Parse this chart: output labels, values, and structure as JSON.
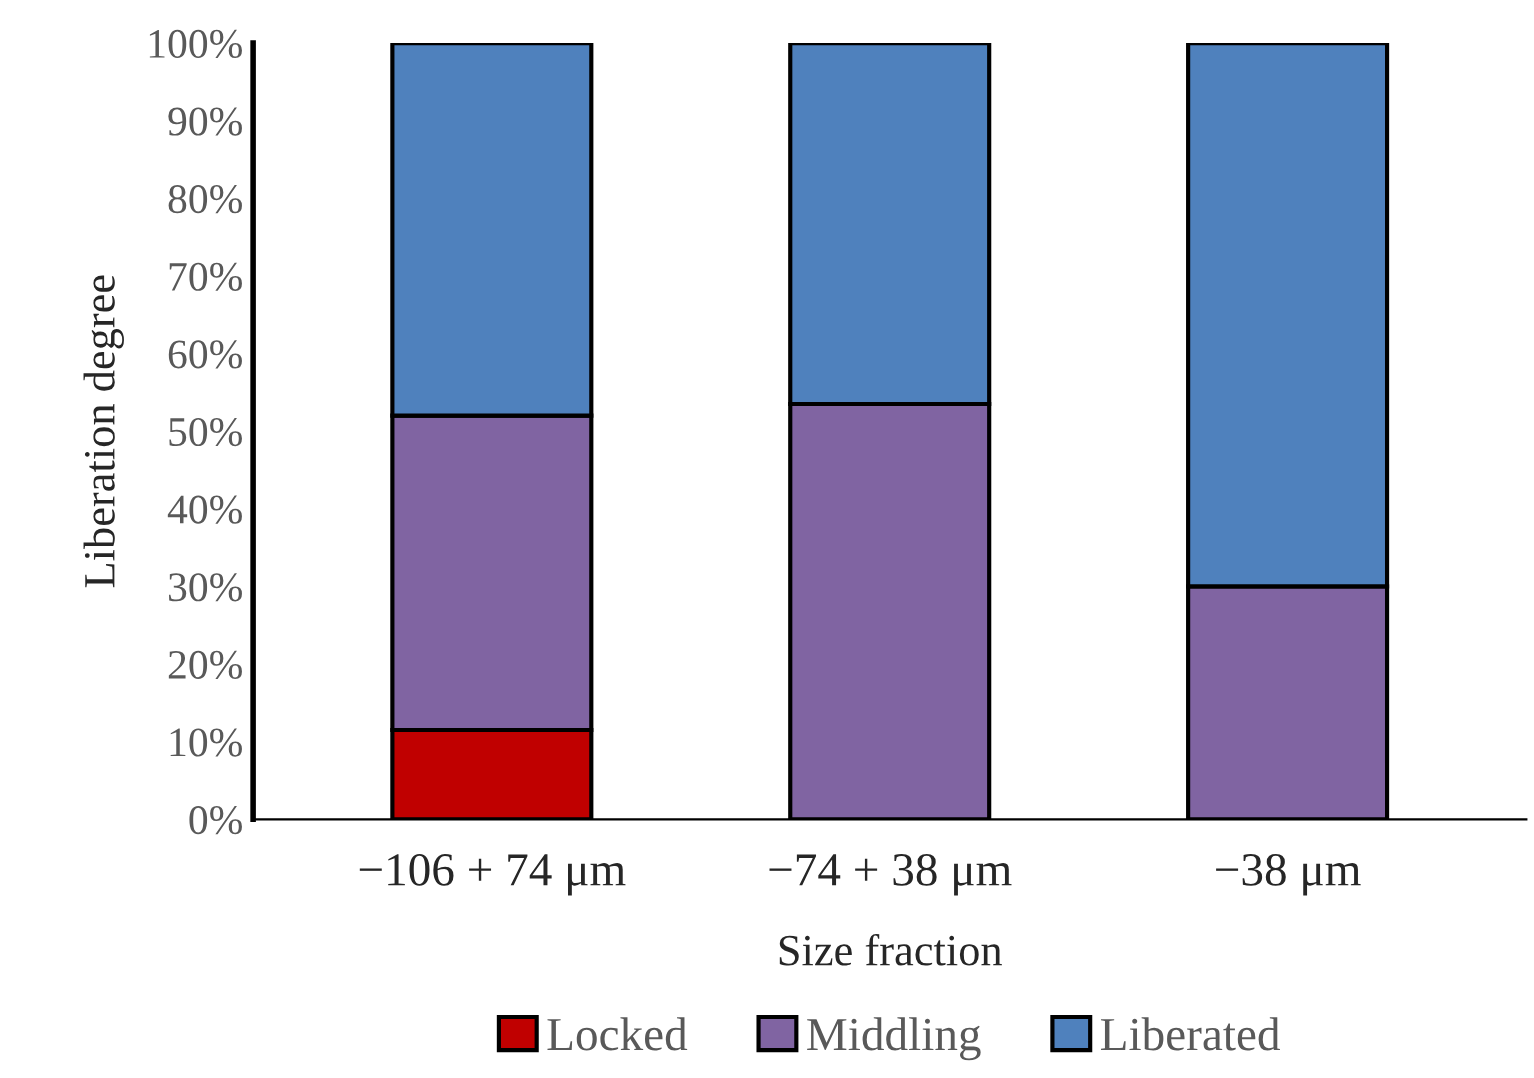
{
  "chart_data": {
    "type": "bar",
    "stacked": true,
    "xlabel": "Size fraction",
    "ylabel": "Liberation degree",
    "categories": [
      "−106 + 74 μm",
      "−74 + 38 μm",
      "−38 μm"
    ],
    "series": [
      {
        "name": "Locked",
        "color": "#c00000",
        "values": [
          11.5,
          null,
          null
        ]
      },
      {
        "name": "Middling",
        "color": "#8064a2",
        "values": [
          40.5,
          53.5,
          30
        ]
      },
      {
        "name": "Liberated",
        "color": "#4f81bd",
        "values": [
          48,
          46.5,
          70
        ]
      }
    ],
    "ylim": [
      0,
      100
    ],
    "yticks": [
      {
        "value": 0,
        "label": "0%"
      },
      {
        "value": 10,
        "label": "10%"
      },
      {
        "value": 20,
        "label": "20%"
      },
      {
        "value": 30,
        "label": "30%"
      },
      {
        "value": 40,
        "label": "40%"
      },
      {
        "value": 50,
        "label": "50%"
      },
      {
        "value": 60,
        "label": "60%"
      },
      {
        "value": 70,
        "label": "70%"
      },
      {
        "value": 80,
        "label": "80%"
      },
      {
        "value": 90,
        "label": "90%"
      },
      {
        "value": 100,
        "label": "100%"
      }
    ],
    "grid": false,
    "legend": "bottom"
  }
}
